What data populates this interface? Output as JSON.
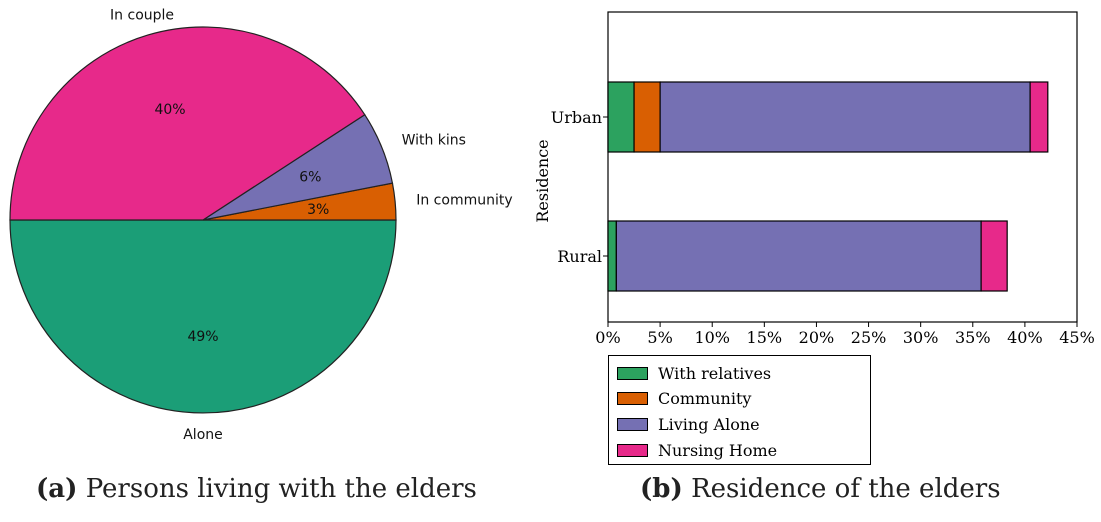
{
  "chart_data": [
    {
      "type": "pie",
      "title": "",
      "caption_tag": "(a)",
      "caption_text": "Persons living with the elders",
      "slices": [
        {
          "label": "Alone",
          "value": 49,
          "pct_label": "49%",
          "color": "#1b9e77"
        },
        {
          "label": "In community",
          "value": 3,
          "pct_label": "3%",
          "color": "#d95f02"
        },
        {
          "label": "With kins",
          "value": 6,
          "pct_label": "6%",
          "color": "#7570b3"
        },
        {
          "label": "In couple",
          "value": 40,
          "pct_label": "40%",
          "color": "#e7298a"
        }
      ]
    },
    {
      "type": "bar",
      "orientation": "horizontal",
      "stacked": true,
      "title": "",
      "caption_tag": "(b)",
      "caption_text": "Residence of the elders",
      "xlabel": "",
      "ylabel": "Residence",
      "categories": [
        "Urban",
        "Rural"
      ],
      "xlim": [
        0,
        45
      ],
      "xticks": [
        "0%",
        "5%",
        "10%",
        "15%",
        "20%",
        "25%",
        "30%",
        "35%",
        "40%",
        "45%"
      ],
      "legend_position": "below",
      "series": [
        {
          "name": "With relatives",
          "color": "#2ca25f",
          "values": [
            2.5,
            0.8
          ]
        },
        {
          "name": "Community",
          "color": "#d95f02",
          "values": [
            2.5,
            0
          ]
        },
        {
          "name": "Living Alone",
          "color": "#7570b3",
          "values": [
            35.5,
            35
          ]
        },
        {
          "name": "Nursing Home",
          "color": "#e7298a",
          "values": [
            1.7,
            2.5
          ]
        }
      ]
    }
  ]
}
